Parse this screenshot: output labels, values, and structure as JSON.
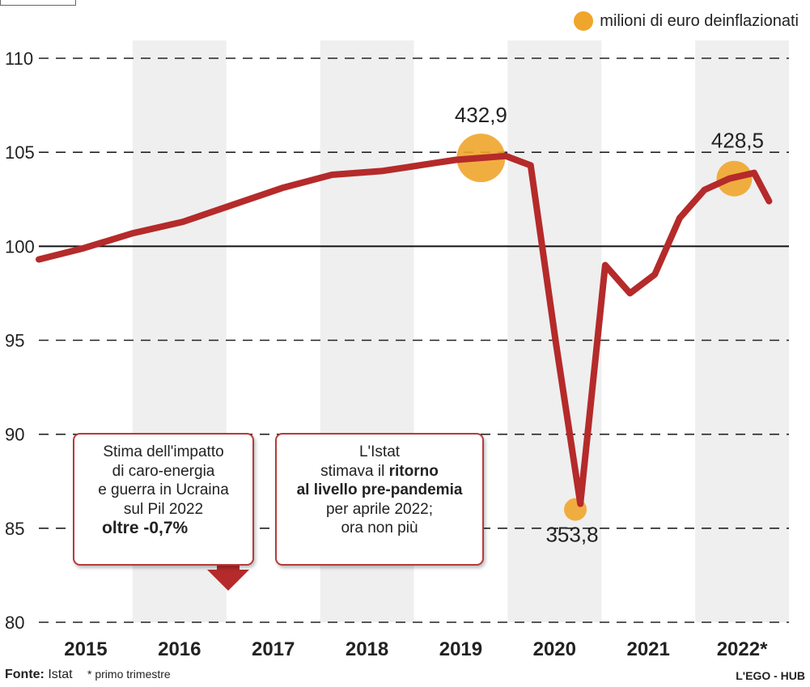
{
  "chart_data": {
    "type": "line",
    "legend": {
      "label": "milioni di euro deinflazionati",
      "color": "#f0a52b",
      "placement": "top-right"
    },
    "y_ticks": [
      "110",
      "105",
      "100",
      "95",
      "90",
      "85",
      "80"
    ],
    "ylim": [
      80,
      110
    ],
    "x_ticks": [
      "2015",
      "2016",
      "2017",
      "2018",
      "2019",
      "2020",
      "2021",
      "2022*"
    ],
    "line_color": "#b52a2a",
    "series": [
      {
        "x": [
          2014.55,
          2015.0,
          2015.5,
          2016.0,
          2016.5,
          2017.0,
          2017.5,
          2018.0,
          2018.25,
          2018.5,
          2018.75,
          2019.0,
          2019.25,
          2019.5,
          2019.75,
          2020.0,
          2020.25,
          2020.5,
          2020.75,
          2021.0,
          2021.25,
          2021.5,
          2021.75,
          2021.9
        ],
        "values": [
          99.3,
          99.9,
          100.7,
          101.3,
          102.2,
          103.1,
          103.8,
          104.0,
          104.2,
          104.4,
          104.6,
          104.7,
          104.8,
          104.3,
          95.0,
          86.3,
          99.0,
          97.5,
          98.5,
          101.5,
          103.0,
          103.6,
          103.9,
          102.4
        ]
      }
    ],
    "highlights": [
      {
        "label": "432,9",
        "x": 2019.0,
        "y": 104.7,
        "color": "#f0a52b"
      },
      {
        "label": "353,8",
        "x": 2019.95,
        "y": 86.0,
        "color": "#f0a52b"
      },
      {
        "label": "428,5",
        "x": 2021.55,
        "y": 103.6,
        "color": "#f0a52b"
      }
    ],
    "reference_line": 100
  },
  "notes": {
    "left": {
      "line1": "Stima dell'impatto",
      "line2": "di caro-energia",
      "line3": "e guerra in Ucraina",
      "line4": "sul Pil 2022",
      "line5": "oltre -0,7%"
    },
    "right": {
      "line1": "L'Istat",
      "line2a": "stimava il ",
      "line2b": "ritorno",
      "line3": "al livello pre-pandemia",
      "line4": "per aprile 2022;",
      "line5": "ora non più"
    }
  },
  "footer": {
    "source_label": "Fonte:",
    "source_value": " Istat",
    "footnote": "* primo trimestre",
    "credit": "L'EGO - HUB"
  }
}
